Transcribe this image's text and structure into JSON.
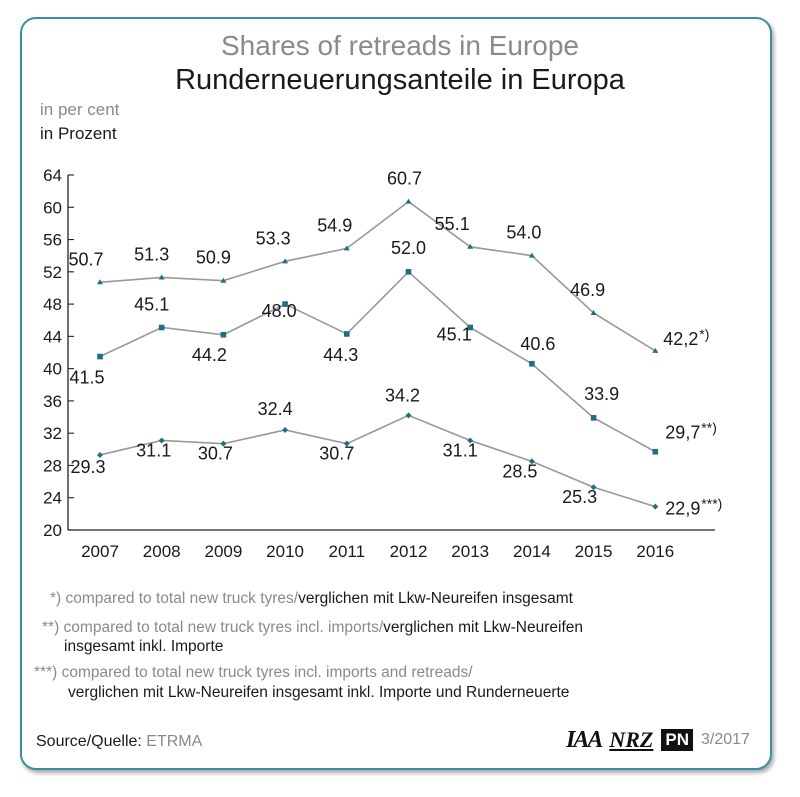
{
  "title_en": "Shares of retreads in Europe",
  "title_de": "Runderneuerungsanteile in Europa",
  "unit_en": "in per cent",
  "unit_de": "in Prozent",
  "chart_data": {
    "type": "line",
    "x": [
      "2007",
      "2008",
      "2009",
      "2010",
      "2011",
      "2012",
      "2013",
      "2014",
      "2015",
      "2016"
    ],
    "ylim": [
      20,
      64
    ],
    "yticks": [
      "20",
      "24",
      "28",
      "32",
      "36",
      "40",
      "44",
      "48",
      "52",
      "56",
      "60",
      "64"
    ],
    "grid": false,
    "series": [
      {
        "values": [
          50.7,
          51.3,
          50.9,
          53.3,
          54.9,
          60.7,
          55.1,
          54.0,
          46.9,
          42.2
        ],
        "labels": [
          "50.7",
          "51.3",
          "50.9",
          "53.3",
          "54.9",
          "60.7",
          "55.1",
          "54.0",
          "46.9",
          "42,2"
        ],
        "marker": "triangle",
        "end_note": "*)"
      },
      {
        "values": [
          41.5,
          45.1,
          44.2,
          48.0,
          44.3,
          52.0,
          45.1,
          40.6,
          33.9,
          29.7
        ],
        "labels": [
          "41.5",
          "45.1",
          "44.2",
          "48.0",
          "44.3",
          "52.0",
          "45.1",
          "40.6",
          "33.9",
          "29,7"
        ],
        "marker": "square",
        "end_note": "**)"
      },
      {
        "values": [
          29.3,
          31.1,
          30.7,
          32.4,
          30.7,
          34.2,
          31.1,
          28.5,
          25.3,
          22.9
        ],
        "labels": [
          "29.3",
          "31.1",
          "30.7",
          "32.4",
          "30.7",
          "34.2",
          "31.1",
          "28.5",
          "25.3",
          "22,9"
        ],
        "marker": "diamond",
        "end_note": "***)"
      }
    ],
    "colors": {
      "line": "#999999",
      "marker": "#1f6f82",
      "axis": "#222222"
    }
  },
  "footnotes": [
    {
      "mark": "*)",
      "en": "compared to total new truck tyres/",
      "de": "verglichen mit Lkw-Neureifen insgesamt"
    },
    {
      "mark": "**)",
      "en": "compared to total new truck tyres incl. imports/",
      "de": "verglichen mit Lkw-Neureifen",
      "de2": "insgesamt inkl. Importe"
    },
    {
      "mark": "***)",
      "en": "compared to total new truck tyres incl. imports and retreads/",
      "de": "verglichen mit Lkw-Neureifen insgesamt inkl. Importe und Runderneuerte"
    }
  ],
  "source": {
    "label": "Source/Quelle:",
    "value": "ETRMA"
  },
  "logos": {
    "iaa": "IAA",
    "nrz": "NRZ",
    "pn": "PN",
    "issue": "3/2017"
  }
}
